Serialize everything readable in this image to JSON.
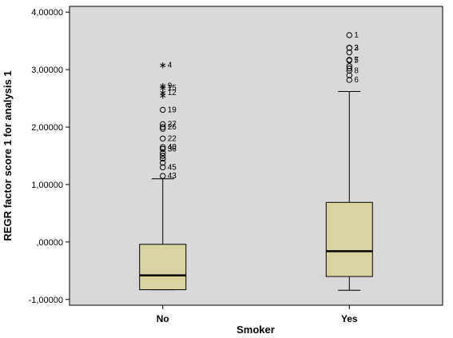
{
  "chart_data": {
    "type": "boxplot",
    "xlabel": "Smoker",
    "ylabel": "REGR factor score   1 for analysis 1",
    "ylim": [
      -1.1,
      4.1
    ],
    "yticks": [
      -1.0,
      0.0,
      1.0,
      2.0,
      3.0,
      4.0
    ],
    "ytick_labels": [
      "-1,00000",
      ",00000",
      "1,00000",
      "2,00000",
      "3,00000",
      "4,00000"
    ],
    "grid": false,
    "colors": {
      "plot_bg": "#d9d9d9",
      "box_fill": "#d8d3a0",
      "line": "#000000"
    },
    "categories": [
      "No",
      "Yes"
    ],
    "boxes": [
      {
        "category": "No",
        "whisker_low": -0.83,
        "q1": -0.83,
        "median": -0.58,
        "q3": -0.04,
        "whisker_high": 1.1,
        "outliers": [
          {
            "y": 3.08,
            "marker": "star",
            "label": "4"
          },
          {
            "y": 2.72,
            "marker": "star",
            "label": "9"
          },
          {
            "y": 2.68,
            "marker": "star",
            "label": "15"
          },
          {
            "y": 2.6,
            "marker": "star",
            "label": "12"
          },
          {
            "y": 2.55,
            "marker": "star",
            "label": ""
          },
          {
            "y": 2.3,
            "marker": "circle",
            "label": "19"
          },
          {
            "y": 2.05,
            "marker": "circle",
            "label": "27"
          },
          {
            "y": 2.0,
            "marker": "circle",
            "label": "26"
          },
          {
            "y": 1.97,
            "marker": "circle",
            "label": ""
          },
          {
            "y": 1.8,
            "marker": "circle",
            "label": "22"
          },
          {
            "y": 1.65,
            "marker": "circle",
            "label": "40"
          },
          {
            "y": 1.62,
            "marker": "circle",
            "label": "36"
          },
          {
            "y": 1.55,
            "marker": "circle",
            "label": ""
          },
          {
            "y": 1.5,
            "marker": "circle",
            "label": ""
          },
          {
            "y": 1.45,
            "marker": "circle",
            "label": ""
          },
          {
            "y": 1.38,
            "marker": "circle",
            "label": ""
          },
          {
            "y": 1.3,
            "marker": "circle",
            "label": "45"
          },
          {
            "y": 1.15,
            "marker": "circle",
            "label": "43"
          }
        ]
      },
      {
        "category": "Yes",
        "whisker_low": -0.84,
        "q1": -0.6,
        "median": -0.16,
        "q3": 0.69,
        "whisker_high": 2.62,
        "outliers": [
          {
            "y": 3.6,
            "marker": "circle",
            "label": "1"
          },
          {
            "y": 3.38,
            "marker": "circle",
            "label": "2"
          },
          {
            "y": 3.38,
            "marker": "circle",
            "label": "3"
          },
          {
            "y": 3.3,
            "marker": "circle",
            "label": ""
          },
          {
            "y": 3.17,
            "marker": "circle",
            "label": "7"
          },
          {
            "y": 3.16,
            "marker": "circle",
            "label": "5"
          },
          {
            "y": 3.06,
            "marker": "circle",
            "label": ""
          },
          {
            "y": 3.02,
            "marker": "circle",
            "label": ""
          },
          {
            "y": 2.98,
            "marker": "circle",
            "label": "8"
          },
          {
            "y": 2.9,
            "marker": "circle",
            "label": ""
          },
          {
            "y": 2.82,
            "marker": "circle",
            "label": "6"
          }
        ]
      }
    ]
  }
}
